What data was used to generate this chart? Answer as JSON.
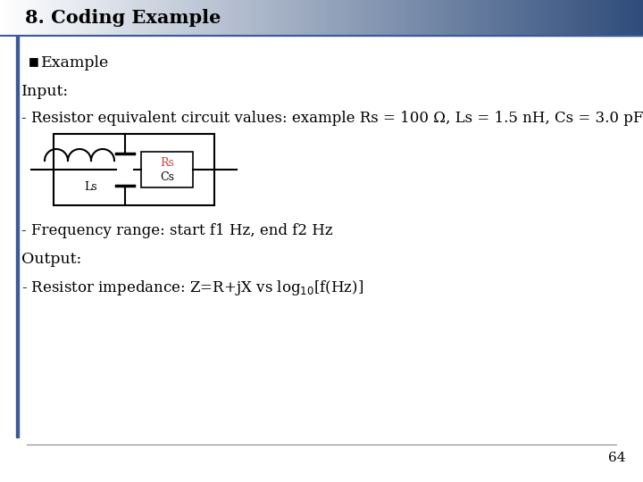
{
  "title": "8. Coding Example",
  "bullet": "Example",
  "input_label": "Input:",
  "line1": "- Resistor equivalent circuit values: example Rs = 100 Ω, Ls = 1.5 nH, Cs = 3.0 pF",
  "line2": "- Frequency range: start f1 Hz, end f2 Hz",
  "output_label": "Output:",
  "line3": "- Resistor impedance: Z=R+jX vs log$_{10}$[f(Hz)]",
  "page_number": "64",
  "bg_color": "#ffffff",
  "grad_start": "#ffffff",
  "grad_end": "#2e4b7a",
  "title_color": "#000000",
  "title_fontsize": 15,
  "body_fontsize": 12.5,
  "left_bar_color": "#3a5a9a"
}
